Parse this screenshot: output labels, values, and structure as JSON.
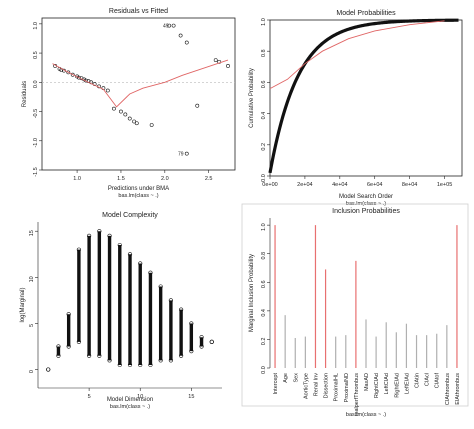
{
  "colors": {
    "axis": "#222222",
    "points": "#111111",
    "smooth": "#e06666",
    "bar_highlight": "#e87070",
    "bar_normal": "#b0b0b0",
    "frame": "#cfcfcf"
  },
  "chart_data": [
    {
      "type": "scatter",
      "title": "Residuals vs Fitted",
      "xlabel": "Predictions under BMA",
      "sublabel": "bas.lm(class ~ .)",
      "ylabel": "Residuals",
      "xlim": [
        0.6,
        2.8
      ],
      "ylim": [
        -1.5,
        1.1
      ],
      "xticks": [
        "1.0",
        "1.5",
        "2.0",
        "2.5"
      ],
      "xtick_values": [
        1.0,
        1.5,
        2.0,
        2.5
      ],
      "yticks": [
        "-1.5",
        "-1.0",
        "-0.5",
        "0.0",
        "0.5",
        "1.0"
      ],
      "ytick_values": [
        -1.5,
        -1.0,
        -0.5,
        0.0,
        0.5,
        1.0
      ],
      "points": [
        [
          0.75,
          0.28
        ],
        [
          0.8,
          0.23
        ],
        [
          0.82,
          0.21
        ],
        [
          0.85,
          0.2
        ],
        [
          0.9,
          0.17
        ],
        [
          0.95,
          0.13
        ],
        [
          1.0,
          0.1
        ],
        [
          1.02,
          0.08
        ],
        [
          1.05,
          0.07
        ],
        [
          1.08,
          0.05
        ],
        [
          1.1,
          0.03
        ],
        [
          1.13,
          0.02
        ],
        [
          1.16,
          0.0
        ],
        [
          1.2,
          -0.03
        ],
        [
          1.25,
          -0.07
        ],
        [
          1.3,
          -0.1
        ],
        [
          1.35,
          -0.14
        ],
        [
          1.42,
          -0.45
        ],
        [
          1.5,
          -0.5
        ],
        [
          1.55,
          -0.55
        ],
        [
          1.6,
          -0.62
        ],
        [
          1.65,
          -0.67
        ],
        [
          1.68,
          -0.7
        ],
        [
          1.85,
          -0.73
        ],
        [
          2.05,
          0.97
        ],
        [
          2.1,
          0.97
        ],
        [
          2.18,
          0.8
        ],
        [
          2.25,
          0.68
        ],
        [
          2.37,
          -0.4
        ],
        [
          2.25,
          -1.22
        ],
        [
          2.58,
          0.38
        ],
        [
          2.62,
          0.35
        ],
        [
          2.72,
          0.28
        ]
      ],
      "labels": [
        {
          "x": 2.08,
          "y": 0.97,
          "text": "49"
        },
        {
          "x": 2.25,
          "y": -1.22,
          "text": "79"
        }
      ],
      "smooth": [
        [
          0.72,
          0.32
        ],
        [
          0.9,
          0.17
        ],
        [
          1.1,
          0.02
        ],
        [
          1.3,
          -0.12
        ],
        [
          1.45,
          -0.42
        ],
        [
          1.6,
          -0.2
        ],
        [
          1.75,
          -0.1
        ],
        [
          2.0,
          0.0
        ],
        [
          2.2,
          0.12
        ],
        [
          2.4,
          0.22
        ],
        [
          2.6,
          0.32
        ],
        [
          2.72,
          0.38
        ]
      ]
    },
    {
      "type": "line",
      "title": "Model Probabilities",
      "xlabel": "Model Search Order",
      "sublabel": "bas.lm(class ~ .)",
      "ylabel": "Cumulative Probability",
      "xlim": [
        0,
        110000
      ],
      "ylim": [
        0,
        1.0
      ],
      "xticks": [
        "0e+00",
        "2e+04",
        "4e+04",
        "6e+04",
        "8e+04",
        "1e+05"
      ],
      "xtick_values": [
        0,
        20000,
        40000,
        60000,
        80000,
        100000
      ],
      "yticks": [
        "0.0",
        "0.2",
        "0.4",
        "0.6",
        "0.8",
        "1.0"
      ],
      "ytick_values": [
        0,
        0.2,
        0.4,
        0.6,
        0.8,
        1.0
      ]
    },
    {
      "type": "scatter",
      "title": "Model Complexity",
      "xlabel": "Model Dimension",
      "sublabel": "bas.lm(class ~ .)",
      "ylabel": "log(Marginal)",
      "xlim": [
        0,
        18
      ],
      "ylim": [
        -2,
        16
      ],
      "xticks": [
        "5",
        "10",
        "15"
      ],
      "xtick_values": [
        5,
        10,
        15
      ],
      "yticks": [
        "0",
        "5",
        "10",
        "15"
      ],
      "ytick_values": [
        0,
        5,
        10,
        15
      ],
      "columns": [
        {
          "x": 1,
          "lo": 0,
          "hi": 0
        },
        {
          "x": 2,
          "lo": 1.5,
          "hi": 2.5
        },
        {
          "x": 3,
          "lo": 2.5,
          "hi": 6
        },
        {
          "x": 4,
          "lo": 3,
          "hi": 13
        },
        {
          "x": 5,
          "lo": 1.5,
          "hi": 14.5
        },
        {
          "x": 6,
          "lo": 1.5,
          "hi": 15
        },
        {
          "x": 7,
          "lo": 1,
          "hi": 14.5
        },
        {
          "x": 8,
          "lo": 0.5,
          "hi": 13.5
        },
        {
          "x": 9,
          "lo": 0.5,
          "hi": 12.5
        },
        {
          "x": 10,
          "lo": 0.5,
          "hi": 11.5
        },
        {
          "x": 11,
          "lo": 0.5,
          "hi": 10.5
        },
        {
          "x": 12,
          "lo": 1,
          "hi": 9
        },
        {
          "x": 13,
          "lo": 1,
          "hi": 7.5
        },
        {
          "x": 14,
          "lo": 1.5,
          "hi": 6.5
        },
        {
          "x": 15,
          "lo": 2,
          "hi": 5
        },
        {
          "x": 16,
          "lo": 2.5,
          "hi": 3.5
        },
        {
          "x": 17,
          "lo": 3,
          "hi": 3
        }
      ]
    },
    {
      "type": "bar",
      "title": "Inclusion Probabilities",
      "xlabel": "",
      "sublabel": "bas.lm(class ~ .)",
      "ylabel": "Marginal Inclusion Probability",
      "ylim": [
        0,
        1.05
      ],
      "yticks": [
        "0.0",
        "0.2",
        "0.4",
        "0.6",
        "0.8",
        "1.0"
      ],
      "ytick_values": [
        0,
        0.2,
        0.4,
        0.6,
        0.8,
        1.0
      ],
      "categories": [
        "Intercept",
        "Age",
        "Sex",
        "AorticType",
        "Renal Inv",
        "Dissection",
        "ProximalHL",
        "ProximalND",
        "malperfThrombus",
        "MaxAD",
        "RightCIAd",
        "LeftCIAd",
        "RightEIAd",
        "LeftEIAd",
        "CIAtin",
        "CIAcl",
        "CIAtof",
        "CIAthrombus",
        "EIAthrombus"
      ],
      "values": [
        1.0,
        0.37,
        0.21,
        0.22,
        1.0,
        0.69,
        0.22,
        0.23,
        0.75,
        0.34,
        0.22,
        0.32,
        0.25,
        0.31,
        0.23,
        0.23,
        0.24,
        0.3,
        1.0
      ],
      "highlight": [
        true,
        false,
        false,
        false,
        true,
        true,
        false,
        false,
        true,
        false,
        false,
        false,
        false,
        false,
        false,
        false,
        false,
        false,
        true
      ]
    }
  ]
}
